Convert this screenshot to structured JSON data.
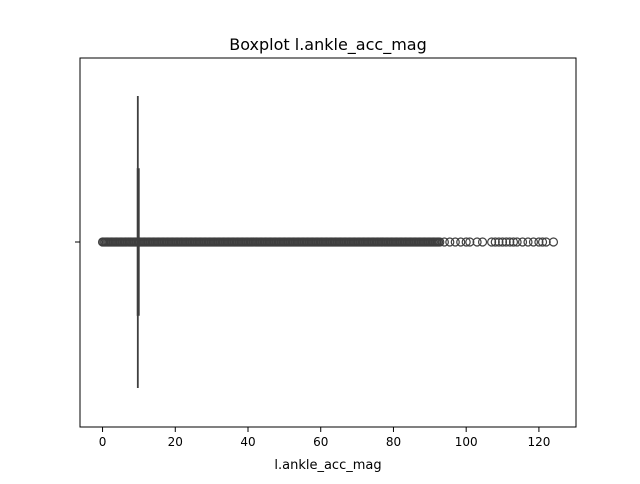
{
  "chart_data": {
    "type": "boxplot",
    "title": "Boxplot l.ankle_acc_mag",
    "xlabel": "l.ankle_acc_mag",
    "ylabel": "",
    "xlim": [
      -6.2,
      130.2
    ],
    "xticks": [
      0,
      20,
      40,
      60,
      80,
      100,
      120
    ],
    "xtick_labels": [
      "0",
      "20",
      "40",
      "60",
      "80",
      "100",
      "120"
    ],
    "orientation": "horizontal",
    "grid": false,
    "box": {
      "whisker_low": 9.5,
      "q1": 9.6,
      "median": 9.7,
      "q3": 9.9,
      "whisker_high": 10.0
    },
    "outliers_dense_range": [
      0,
      93
    ],
    "outliers_sparse": [
      94,
      95.5,
      97,
      98.5,
      100,
      101,
      103,
      104.5,
      107,
      108,
      109,
      110,
      111,
      112,
      113,
      114,
      115.5,
      117,
      118.5,
      120,
      121,
      122,
      124
    ],
    "colors": {
      "box_edge": "#3f3f3f",
      "marker_edge": "#3f3f3f"
    }
  }
}
